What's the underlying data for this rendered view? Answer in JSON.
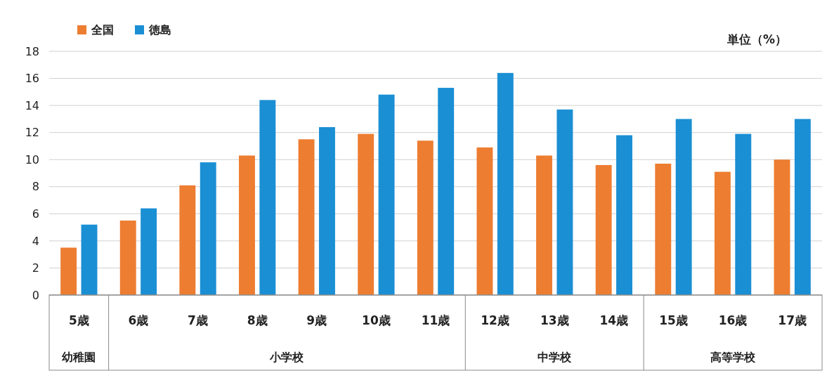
{
  "chart_data": {
    "type": "bar",
    "ylabel": "単位（%）",
    "categories": [
      "5歳",
      "6歳",
      "7歳",
      "8歳",
      "9歳",
      "10歳",
      "11歳",
      "12歳",
      "13歳",
      "14歳",
      "15歳",
      "16歳",
      "17歳"
    ],
    "series": [
      {
        "name": "全国",
        "color": "#ed7d31",
        "values": [
          3.5,
          5.5,
          8.1,
          10.3,
          11.5,
          11.9,
          11.4,
          10.9,
          10.3,
          9.6,
          9.7,
          9.1,
          10.0
        ]
      },
      {
        "name": "徳島",
        "color": "#1a8fd4",
        "values": [
          5.2,
          6.4,
          9.8,
          14.4,
          12.4,
          14.8,
          15.3,
          16.4,
          13.7,
          11.8,
          13.0,
          11.9,
          13.0
        ]
      }
    ],
    "ylim": [
      0,
      18
    ],
    "yticks": [
      0,
      2,
      4,
      6,
      8,
      10,
      12,
      14,
      16,
      18
    ],
    "grid": "y",
    "legend": "top left",
    "annotations": [
      "幼稚園",
      "小学校",
      "中学校",
      "高等学校"
    ]
  }
}
